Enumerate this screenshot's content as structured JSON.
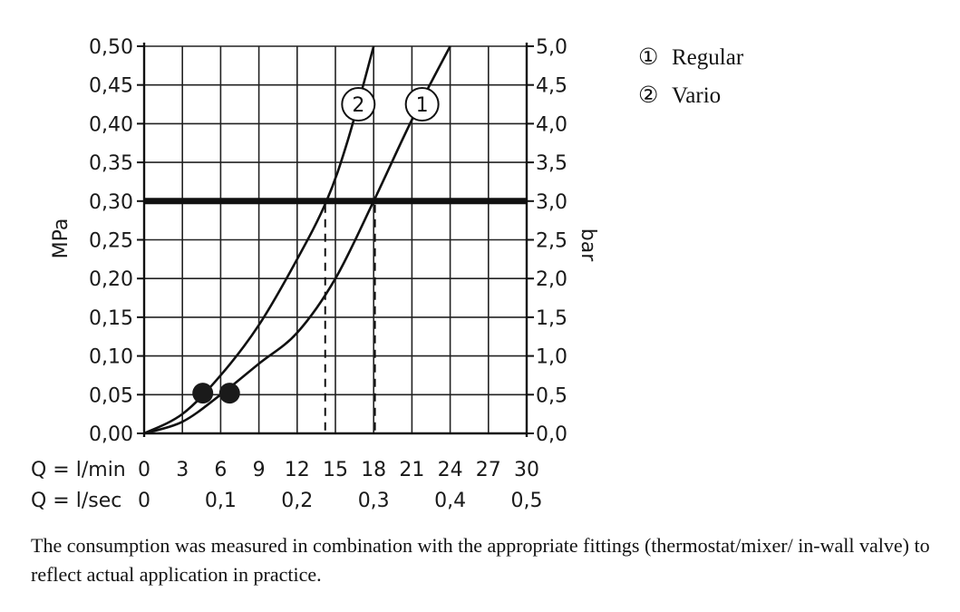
{
  "chart_data": {
    "type": "line",
    "title": "",
    "y_left_label": "MPa",
    "y_right_label": "bar",
    "ylim": [
      0,
      0.5
    ],
    "xlim": [
      0,
      30
    ],
    "grid": true,
    "y_left_ticks": [
      "0,00",
      "0,05",
      "0,10",
      "0,15",
      "0,20",
      "0,25",
      "0,30",
      "0,35",
      "0,40",
      "0,45",
      "0,50"
    ],
    "y_right_ticks": [
      "0,0",
      "0,5",
      "1,0",
      "1,5",
      "2,0",
      "2,5",
      "3,0",
      "3,5",
      "4,0",
      "4,5",
      "5,0"
    ],
    "x_label_lmin": "Q = l/min",
    "x_ticks_lmin": [
      "0",
      "3",
      "6",
      "9",
      "12",
      "15",
      "18",
      "21",
      "24",
      "27",
      "30"
    ],
    "x_label_lsec": "Q = l/sec",
    "x_ticks_lsec": [
      {
        "x": 0,
        "label": "0"
      },
      {
        "x": 6,
        "label": "0,1"
      },
      {
        "x": 12,
        "label": "0,2"
      },
      {
        "x": 18,
        "label": "0,3"
      },
      {
        "x": 24,
        "label": "0,4"
      },
      {
        "x": 30,
        "label": "0,5"
      }
    ],
    "reference_line": {
      "y": 0.3
    },
    "series": [
      {
        "marker": "1",
        "x": [
          0,
          3,
          6,
          9,
          12,
          15,
          18,
          21,
          24
        ],
        "y": [
          0,
          0.015,
          0.05,
          0.09,
          0.13,
          0.2,
          0.3,
          0.405,
          0.5
        ],
        "start_point": {
          "x": 6.7,
          "y": 0.052
        },
        "marker_pos": {
          "x": 21.8,
          "y": 0.425
        },
        "drop_x": 18.1
      },
      {
        "marker": "2",
        "x": [
          0,
          3,
          6,
          9,
          12,
          14.3,
          16,
          18
        ],
        "y": [
          0,
          0.025,
          0.075,
          0.14,
          0.225,
          0.3,
          0.38,
          0.5
        ],
        "start_point": {
          "x": 4.6,
          "y": 0.052
        },
        "marker_pos": {
          "x": 16.8,
          "y": 0.425
        },
        "drop_x": 14.2
      }
    ],
    "legend": [
      {
        "marker": "①",
        "label": "Regular"
      },
      {
        "marker": "②",
        "label": "Vario"
      }
    ],
    "legend_position": "top-right"
  },
  "caption": "The consumption was measured in combination with the appropriate fittings (thermostat/mixer/ in-wall valve) to reflect actual application in practice."
}
